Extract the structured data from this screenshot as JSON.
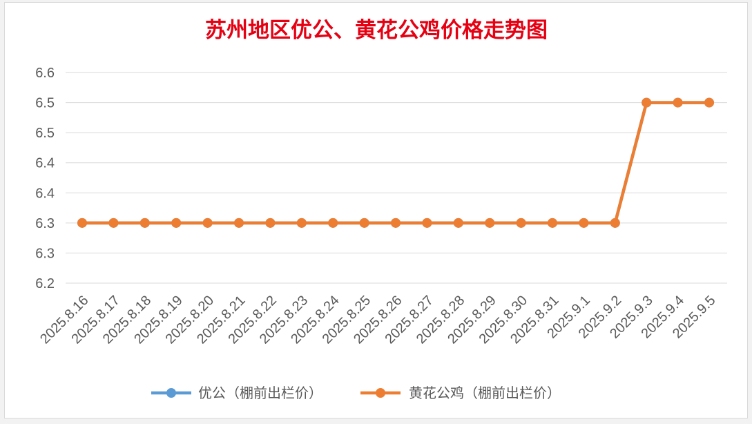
{
  "colors": {
    "title": "#e60012",
    "series_youGong": "#5b9bd5",
    "series_huangHua": "#ed7d31",
    "grid": "#d9d9d9",
    "text": "#595959"
  },
  "chart_data": {
    "type": "line",
    "title": "苏州地区优公、黄花公鸡价格走势图",
    "xlabel": "",
    "ylabel": "",
    "categories": [
      "2025.8.16",
      "2025.8.17",
      "2025.8.18",
      "2025.8.19",
      "2025.8.20",
      "2025.8.21",
      "2025.8.22",
      "2025.8.23",
      "2025.8.24",
      "2025.8.25",
      "2025.8.26",
      "2025.8.27",
      "2025.8.28",
      "2025.8.29",
      "2025.8.30",
      "2025.8.31",
      "2025.9.1",
      "2025.9.2",
      "2025.9.3",
      "2025.9.4",
      "2025.9.5"
    ],
    "y_tick_labels": [
      "6.2",
      "6.3",
      "6.3",
      "6.4",
      "6.4",
      "6.5",
      "6.5",
      "6.6"
    ],
    "ylim": [
      6.2,
      6.55
    ],
    "grid": true,
    "legend_position": "bottom",
    "series": [
      {
        "name": "优公（棚前出栏价）",
        "values": [
          6.3,
          6.3,
          6.3,
          6.3,
          6.3,
          6.3,
          6.3,
          6.3,
          6.3,
          6.3,
          6.3,
          6.3,
          6.3,
          6.3,
          6.3,
          6.3,
          6.3,
          6.3,
          6.5,
          6.5,
          6.5
        ]
      },
      {
        "name": "黄花公鸡（棚前出栏价）",
        "values": [
          6.3,
          6.3,
          6.3,
          6.3,
          6.3,
          6.3,
          6.3,
          6.3,
          6.3,
          6.3,
          6.3,
          6.3,
          6.3,
          6.3,
          6.3,
          6.3,
          6.3,
          6.3,
          6.5,
          6.5,
          6.5
        ]
      }
    ]
  }
}
